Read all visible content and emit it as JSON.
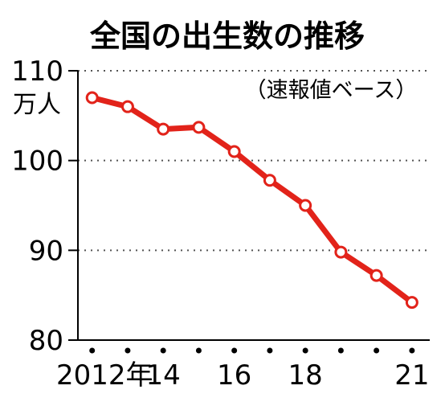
{
  "chart_data": {
    "type": "line",
    "title": "全国の出生数の推移",
    "subtitle": "（速報値ベース）",
    "yunit": "万人",
    "x": [
      2012,
      2013,
      2014,
      2015,
      2016,
      2017,
      2018,
      2019,
      2020,
      2021
    ],
    "values": [
      107.0,
      106.0,
      103.5,
      103.7,
      101.0,
      97.8,
      95.0,
      89.8,
      87.2,
      84.2
    ],
    "ylim": [
      80,
      110
    ],
    "yticks": [
      80,
      90,
      100,
      110
    ],
    "xtick_labels": [
      {
        "x": 2012,
        "label": "2012年"
      },
      {
        "x": 2014,
        "label": "14"
      },
      {
        "x": 2016,
        "label": "16"
      },
      {
        "x": 2018,
        "label": "18"
      },
      {
        "x": 2021,
        "label": "21"
      }
    ],
    "grid": true,
    "line_color": "#e2231a",
    "marker_fill": "#ffffff",
    "grid_color": "#555555"
  }
}
